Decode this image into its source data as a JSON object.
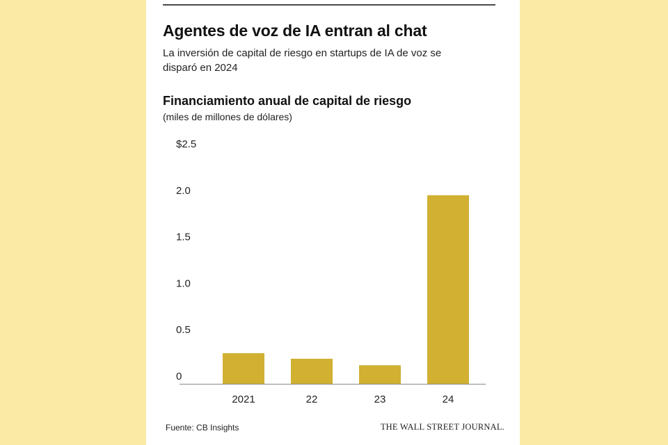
{
  "title": "Agentes de voz de IA entran al chat",
  "subtitle": "La inversión de capital de riesgo en startups de IA de voz se disparó en 2024",
  "colors": {
    "background": "#fbeaa5",
    "bar": "#d1b032",
    "axis": "#888888",
    "text": "#222222"
  },
  "chart_data": {
    "type": "bar",
    "title": "Financiamiento anual de capital de riesgo",
    "subtitle": "(miles de millones de dólares)",
    "categories": [
      "2021",
      "22",
      "23",
      "24"
    ],
    "values": [
      0.33,
      0.27,
      0.2,
      2.03
    ],
    "yticks": [
      {
        "value": 0,
        "label": "0"
      },
      {
        "value": 0.5,
        "label": "0.5"
      },
      {
        "value": 1.0,
        "label": "1.0"
      },
      {
        "value": 1.5,
        "label": "1.5"
      },
      {
        "value": 2.0,
        "label": "2.0"
      },
      {
        "value": 2.5,
        "label": "$2.5"
      }
    ],
    "ylim": [
      0,
      2.5
    ],
    "grid": false,
    "xlabel": "",
    "ylabel": ""
  },
  "footer": {
    "source": "Fuente: CB Insights",
    "brand": "THE WALL STREET JOURNAL."
  }
}
